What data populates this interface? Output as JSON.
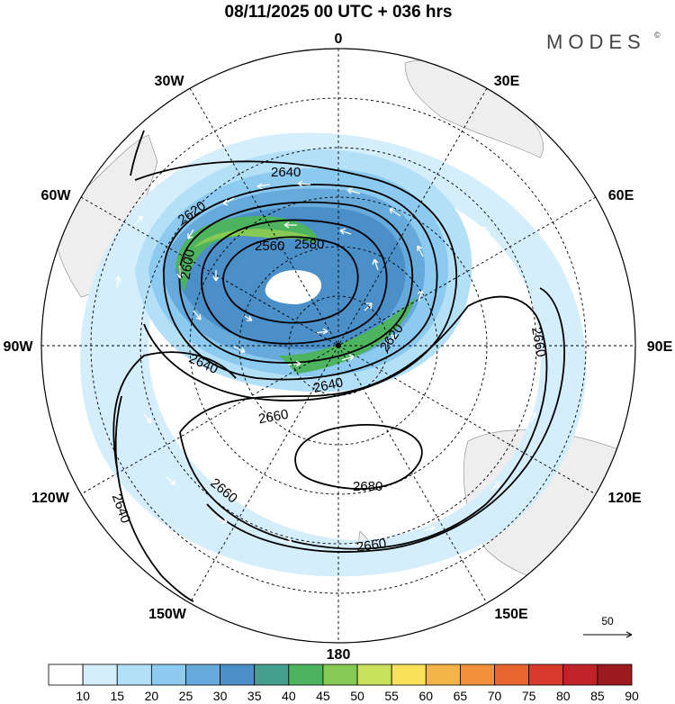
{
  "title": "08/11/2025  00 UTC  + 036 hrs",
  "brand": "MODES",
  "brand_mark": "©",
  "longitude_labels": {
    "lon_0": "0",
    "lon_30e": "30E",
    "lon_60e": "60E",
    "lon_90e": "90E",
    "lon_120e": "120E",
    "lon_150e": "150E",
    "lon_180": "180",
    "lon_150w": "150W",
    "lon_120w": "120W",
    "lon_90w": "90W",
    "lon_60w": "60W",
    "lon_30w": "30W"
  },
  "contour_labels": {
    "c2560": "2560",
    "c2580": "2580",
    "c2600": "2600",
    "c2620a": "2620",
    "c2620b": "2620",
    "c2640a": "2640",
    "c2640b": "2640",
    "c2640c": "2640",
    "c2640d": "2640",
    "c2660a": "2660",
    "c2660b": "2660",
    "c2660c": "2660",
    "c2660d": "2660",
    "c2680": "2680"
  },
  "reference_vector": {
    "label": "50"
  },
  "colorbar": {
    "colors": [
      "#ffffff",
      "#d5eefb",
      "#b3e0f6",
      "#8ccaf0",
      "#66aadb",
      "#4b8fc9",
      "#459f8f",
      "#4db35e",
      "#86c954",
      "#c9e05a",
      "#f7e25a",
      "#f5b448",
      "#f19038",
      "#e8652f",
      "#d8392b",
      "#c0222a",
      "#9a1a1f"
    ],
    "ticks": [
      "10",
      "15",
      "20",
      "25",
      "30",
      "35",
      "40",
      "45",
      "50",
      "55",
      "60",
      "65",
      "70",
      "75",
      "80",
      "85",
      "90"
    ]
  }
}
